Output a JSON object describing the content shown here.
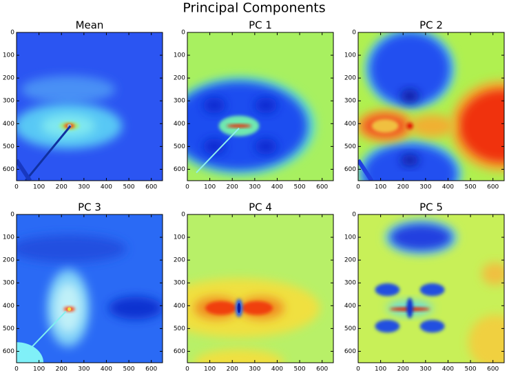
{
  "title": "Principal Components",
  "chart_data": [
    {
      "type": "image",
      "title": "Mean",
      "xlim": [
        0,
        650
      ],
      "ylim": [
        650,
        0
      ],
      "xticks": [
        0,
        100,
        200,
        300,
        400,
        500,
        600
      ],
      "yticks": [
        0,
        100,
        200,
        300,
        400,
        500,
        600
      ]
    },
    {
      "type": "image",
      "title": "PC 1",
      "xlim": [
        0,
        650
      ],
      "ylim": [
        650,
        0
      ],
      "xticks": [
        0,
        100,
        200,
        300,
        400,
        500,
        600
      ],
      "yticks": [
        0,
        100,
        200,
        300,
        400,
        500,
        600
      ]
    },
    {
      "type": "image",
      "title": "PC 2",
      "xlim": [
        0,
        650
      ],
      "ylim": [
        650,
        0
      ],
      "xticks": [
        0,
        100,
        200,
        300,
        400,
        500,
        600
      ],
      "yticks": [
        0,
        100,
        200,
        300,
        400,
        500,
        600
      ]
    },
    {
      "type": "image",
      "title": "PC 3",
      "xlim": [
        0,
        650
      ],
      "ylim": [
        650,
        0
      ],
      "xticks": [
        0,
        100,
        200,
        300,
        400,
        500,
        600
      ],
      "yticks": [
        0,
        100,
        200,
        300,
        400,
        500,
        600
      ]
    },
    {
      "type": "image",
      "title": "PC 4",
      "xlim": [
        0,
        650
      ],
      "ylim": [
        650,
        0
      ],
      "xticks": [
        0,
        100,
        200,
        300,
        400,
        500,
        600
      ],
      "yticks": [
        0,
        100,
        200,
        300,
        400,
        500,
        600
      ]
    },
    {
      "type": "image",
      "title": "PC 5",
      "xlim": [
        0,
        650
      ],
      "ylim": [
        650,
        0
      ],
      "xticks": [
        0,
        100,
        200,
        300,
        400,
        500,
        600
      ],
      "yticks": [
        0,
        100,
        200,
        300,
        400,
        500,
        600
      ]
    }
  ]
}
